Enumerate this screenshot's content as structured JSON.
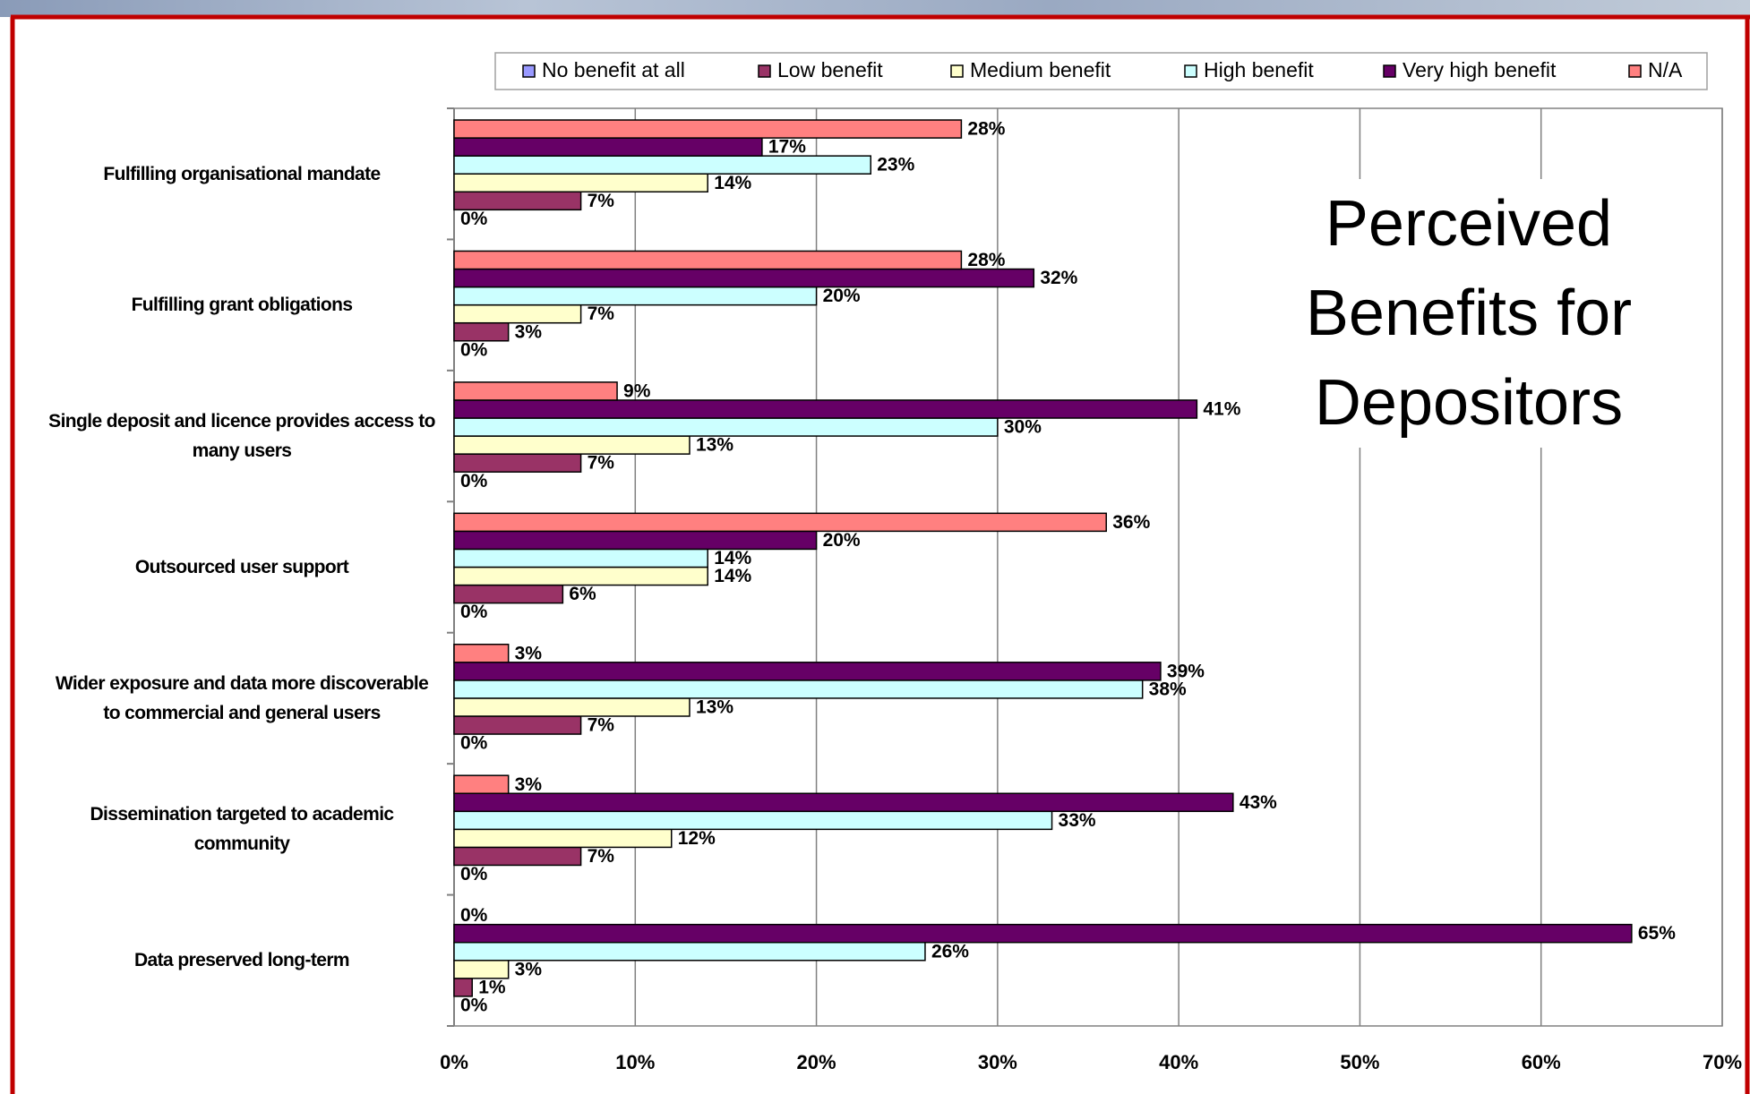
{
  "chart_data": {
    "type": "hbar",
    "title": "Perceived Benefits for Depositors",
    "categories": [
      "Fulfilling organisational mandate",
      "Fulfilling grant obligations",
      "Single deposit and licence provides access to many users",
      "Outsourced user support",
      "Wider exposure and data more discoverable to commercial and general users",
      "Dissemination targeted to academic community",
      "Data preserved long-term"
    ],
    "series": [
      {
        "name": "No benefit at all",
        "color": "#9999ff",
        "values": [
          0,
          0,
          0,
          0,
          0,
          0,
          0
        ],
        "value_labels": [
          "0%",
          "0%",
          "0%",
          "0%",
          "0%",
          "0%",
          "0%"
        ]
      },
      {
        "name": "Low benefit",
        "color": "#993366",
        "values": [
          7,
          3,
          7,
          6,
          7,
          7,
          1
        ],
        "value_labels": [
          "7%",
          "3%",
          "7%",
          "6%",
          "7%",
          "7%",
          "1%"
        ]
      },
      {
        "name": "Medium benefit",
        "color": "#ffffcc",
        "values": [
          14,
          7,
          13,
          14,
          13,
          12,
          3
        ],
        "value_labels": [
          "14%",
          "7%",
          "13%",
          "14%",
          "13%",
          "12%",
          "3%"
        ]
      },
      {
        "name": "High benefit",
        "color": "#ccffff",
        "values": [
          23,
          20,
          30,
          14,
          38,
          33,
          26
        ],
        "value_labels": [
          "23%",
          "20%",
          "30%",
          "14%",
          "38%",
          "33%",
          "26%"
        ]
      },
      {
        "name": "Very high benefit",
        "color": "#660066",
        "values": [
          17,
          32,
          41,
          20,
          39,
          43,
          65
        ],
        "value_labels": [
          "17%",
          "32%",
          "41%",
          "20%",
          "39%",
          "43%",
          "65%"
        ]
      },
      {
        "name": "N/A",
        "color": "#ff8080",
        "values": [
          28,
          28,
          9,
          36,
          3,
          3,
          0
        ],
        "value_labels": [
          "28%",
          "28%",
          "9%",
          "36%",
          "3%",
          "3%",
          "0%"
        ]
      }
    ],
    "xlim": [
      0,
      70
    ],
    "xticks": [
      {
        "value": 0,
        "label": "0%"
      },
      {
        "value": 10,
        "label": "10%"
      },
      {
        "value": 20,
        "label": "20%"
      },
      {
        "value": 30,
        "label": "30%"
      },
      {
        "value": 40,
        "label": "40%"
      },
      {
        "value": 50,
        "label": "50%"
      },
      {
        "value": 60,
        "label": "60%"
      },
      {
        "value": 70,
        "label": "70%"
      }
    ],
    "grid": true
  }
}
